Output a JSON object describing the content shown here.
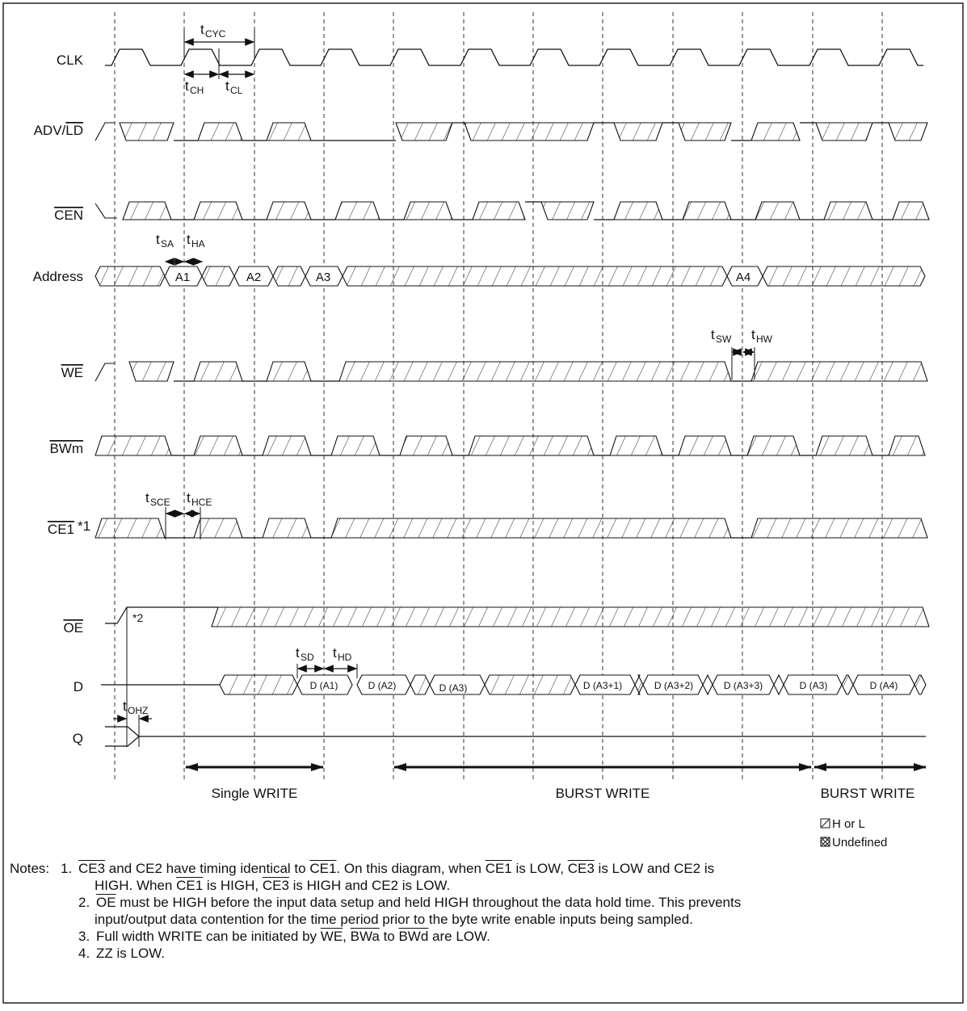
{
  "signals": {
    "clk": "CLK",
    "adv_ld": {
      "adv": "ADV/",
      "ld": "LD"
    },
    "cen": "CEN",
    "address": "Address",
    "we": "WE",
    "bwm": "BWm",
    "ce1": {
      "name": "CE1",
      "mark": "*1"
    },
    "oe": "OE",
    "d": "D",
    "q": "Q"
  },
  "params": {
    "tcyc": {
      "t": "t",
      "sub": "CYC"
    },
    "tch": {
      "t": "t",
      "sub": "CH"
    },
    "tcl": {
      "t": "t",
      "sub": "CL"
    },
    "tsa": {
      "t": "t",
      "sub": "SA"
    },
    "tha": {
      "t": "t",
      "sub": "HA"
    },
    "tsw": {
      "t": "t",
      "sub": "SW"
    },
    "thw": {
      "t": "t",
      "sub": "HW"
    },
    "tsce": {
      "t": "t",
      "sub": "SCE"
    },
    "thce": {
      "t": "t",
      "sub": "HCE"
    },
    "tsd": {
      "t": "t",
      "sub": "SD"
    },
    "thd": {
      "t": "t",
      "sub": "HD"
    },
    "tohz": {
      "t": "t",
      "sub": "OHZ"
    }
  },
  "oe_mark": "*2",
  "addresses": [
    "A1",
    "A2",
    "A3",
    "A4"
  ],
  "data_boxes": [
    "D (A1)",
    "D (A2)",
    "D (A3)",
    "D (A3+1)",
    "D (A3+2)",
    "D (A3+3)",
    "D (A3)",
    "D (A4)"
  ],
  "sections": [
    "Single WRITE",
    "BURST WRITE",
    "BURST WRITE"
  ],
  "legend": {
    "h_or_l": "H or L",
    "undefined": "Undefined"
  },
  "notes": {
    "heading": "Notes:",
    "n1": {
      "num": "1.",
      "ce3a": "CE3",
      "t1": " and CE2 have timing identical to ",
      "ce1a": "CE1",
      "t2": ".  On this diagram, when ",
      "ce1b": "CE1",
      "t3": " is LOW, ",
      "ce3b": "CE3",
      "t4": " is LOW and CE2 is",
      "t5": "HIGH.  When ",
      "ce1c": "CE1",
      "t6": " is HIGH, ",
      "ce3c": "CE3",
      "t7": " is HIGH and CE2 is LOW."
    },
    "n2": {
      "num": "2.",
      "oe": "OE",
      "t1": " must be HIGH before the input data setup and held HIGH throughout the data hold time.  This prevents",
      "t2": "input/output data contention for the time period prior to the byte write enable inputs being sampled."
    },
    "n3": {
      "num": "3.",
      "t1": "Full width WRITE can be initiated by ",
      "we": "WE",
      "t2": ", ",
      "bwa": "BWa",
      "t3": " to ",
      "bwd": "BWd",
      "t4": " are LOW."
    },
    "n4": {
      "num": "4.",
      "t1": "ZZ is LOW."
    }
  }
}
